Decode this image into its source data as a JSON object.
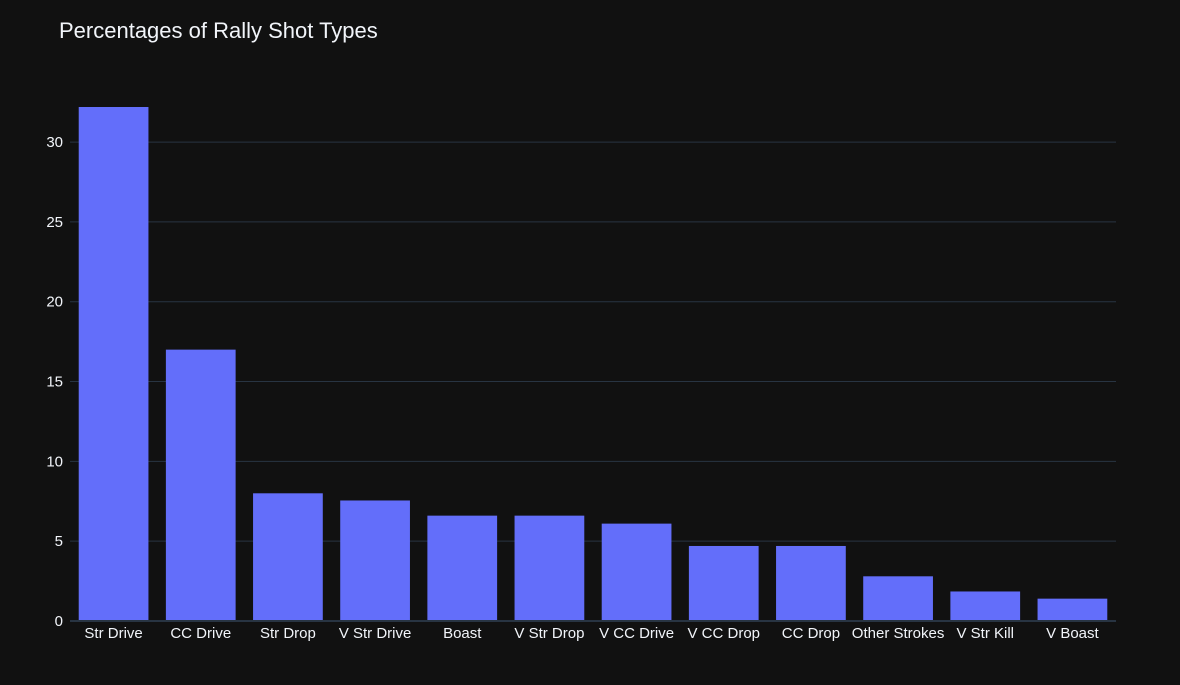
{
  "chart_data": {
    "type": "bar",
    "title": "Percentages of Rally Shot Types",
    "xlabel": "",
    "ylabel": "",
    "categories": [
      "Str Drive",
      "CC Drive",
      "Str Drop",
      "V Str Drive",
      "Boast",
      "V Str Drop",
      "V CC Drive",
      "V CC Drop",
      "CC Drop",
      "Other Strokes",
      "V Str Kill",
      "V Boast"
    ],
    "values": [
      32.2,
      17.0,
      8.0,
      7.55,
      6.6,
      6.6,
      6.1,
      4.7,
      4.7,
      2.8,
      1.85,
      1.4
    ],
    "ylim": [
      0,
      32.2
    ],
    "yticks": [
      0,
      5,
      10,
      15,
      20,
      25,
      30
    ],
    "grid": true,
    "legend": "none",
    "colors": {
      "background": "#111111",
      "bar": "#636efa",
      "grid": "#283442",
      "text": "#f2f5fa"
    }
  }
}
